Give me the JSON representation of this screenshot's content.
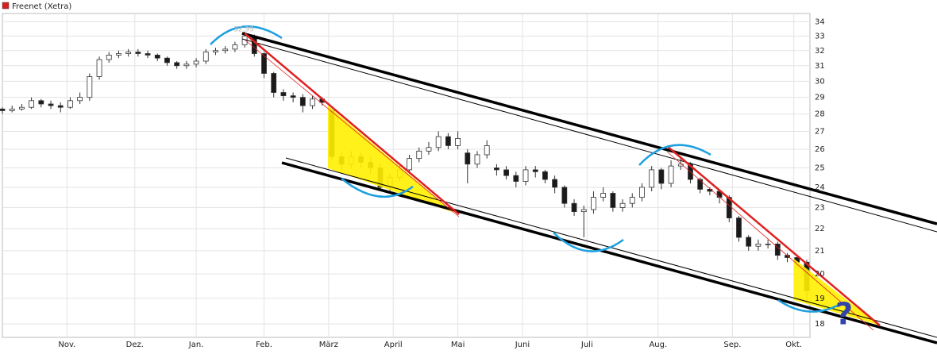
{
  "chart_data": {
    "type": "candlestick",
    "title": "Freenet (Xetra)",
    "legend_color": "#d62020",
    "log_scale": true,
    "grid": true,
    "up_color": "#ffffff",
    "down_color": "#1a1a1a",
    "wick_color": "#333333",
    "ylim": [
      17.5,
      34.6
    ],
    "yticks": [
      18,
      19,
      20,
      21,
      22,
      23,
      24,
      25,
      26,
      27,
      28,
      29,
      30,
      31,
      32,
      33,
      34
    ],
    "xlim": [
      0,
      250
    ],
    "xticks": [
      {
        "value": 20,
        "label": "Nov."
      },
      {
        "value": 41,
        "label": "Dez."
      },
      {
        "value": 60,
        "label": "Jan."
      },
      {
        "value": 81,
        "label": "Feb."
      },
      {
        "value": 101,
        "label": "März"
      },
      {
        "value": 121,
        "label": "April"
      },
      {
        "value": 141,
        "label": "Mai"
      },
      {
        "value": 161,
        "label": "Juni"
      },
      {
        "value": 181,
        "label": "Juli"
      },
      {
        "value": 203,
        "label": "Aug."
      },
      {
        "value": 226,
        "label": "Sep."
      },
      {
        "value": 245,
        "label": "Okt."
      }
    ],
    "x": [
      0,
      3,
      6,
      9,
      12,
      15,
      18,
      21,
      24,
      27,
      30,
      33,
      36,
      39,
      42,
      45,
      48,
      51,
      54,
      57,
      60,
      63,
      66,
      69,
      72,
      75,
      78,
      81,
      84,
      87,
      90,
      93,
      96,
      99,
      102,
      105,
      108,
      111,
      114,
      117,
      120,
      123,
      126,
      129,
      132,
      135,
      138,
      141,
      144,
      147,
      150,
      153,
      156,
      159,
      162,
      165,
      168,
      171,
      174,
      177,
      180,
      183,
      186,
      189,
      192,
      195,
      198,
      201,
      204,
      207,
      210,
      213,
      216,
      219,
      222,
      225,
      228,
      231,
      234,
      237,
      240,
      243,
      246,
      249
    ],
    "open": [
      28.3,
      28.2,
      28.3,
      28.4,
      28.8,
      28.6,
      28.5,
      28.4,
      28.8,
      29.0,
      30.3,
      31.4,
      31.7,
      31.8,
      31.9,
      31.8,
      31.7,
      31.5,
      31.2,
      31.0,
      31.1,
      31.3,
      31.9,
      32.0,
      32.1,
      32.4,
      33.0,
      31.8,
      30.5,
      29.3,
      29.1,
      29.0,
      28.5,
      28.9,
      28.2,
      25.6,
      25.2,
      25.6,
      25.3,
      25.0,
      24.0,
      24.5,
      24.9,
      25.5,
      25.9,
      26.1,
      26.7,
      26.2,
      25.8,
      25.2,
      25.7,
      25.0,
      24.9,
      24.6,
      24.3,
      24.9,
      24.8,
      24.4,
      24.0,
      23.2,
      22.8,
      22.9,
      23.5,
      23.7,
      23.0,
      23.2,
      23.5,
      24.0,
      24.9,
      24.2,
      25.1,
      25.2,
      24.4,
      23.9,
      23.8,
      23.5,
      22.5,
      21.6,
      21.2,
      21.3,
      21.3,
      20.8,
      20.7,
      20.5
    ],
    "high": [
      28.4,
      28.5,
      28.6,
      29.0,
      28.9,
      28.8,
      28.7,
      29.0,
      29.3,
      30.5,
      31.6,
      31.9,
      32.0,
      32.1,
      32.1,
      32.0,
      31.8,
      31.6,
      31.3,
      31.3,
      31.5,
      32.1,
      32.2,
      32.3,
      32.6,
      33.3,
      33.1,
      31.9,
      30.6,
      29.5,
      29.3,
      29.2,
      29.1,
      29.0,
      28.3,
      25.8,
      25.9,
      25.8,
      25.6,
      25.2,
      24.7,
      25.1,
      25.7,
      26.1,
      26.4,
      27.0,
      26.9,
      27.0,
      26.0,
      25.9,
      26.5,
      25.2,
      25.1,
      24.8,
      25.1,
      25.1,
      24.9,
      24.6,
      24.1,
      23.4,
      23.1,
      23.8,
      24.0,
      23.8,
      23.4,
      23.7,
      24.2,
      25.1,
      25.0,
      25.4,
      25.5,
      25.3,
      24.5,
      24.0,
      23.9,
      23.6,
      22.6,
      21.7,
      21.5,
      21.5,
      21.4,
      20.9,
      20.8,
      20.6
    ],
    "low": [
      28.0,
      28.1,
      28.2,
      28.3,
      28.4,
      28.3,
      28.1,
      28.3,
      28.6,
      28.8,
      30.1,
      31.2,
      31.5,
      31.6,
      31.6,
      31.5,
      31.3,
      31.0,
      30.8,
      30.8,
      30.9,
      31.1,
      31.7,
      31.8,
      31.9,
      32.2,
      31.6,
      30.2,
      29.0,
      28.8,
      28.7,
      28.1,
      28.3,
      28.5,
      25.4,
      24.9,
      25.0,
      25.0,
      24.7,
      23.8,
      23.8,
      24.3,
      24.7,
      25.3,
      25.7,
      25.9,
      26.0,
      26.0,
      24.2,
      25.0,
      25.5,
      24.6,
      24.4,
      24.0,
      24.1,
      24.5,
      24.2,
      23.7,
      23.0,
      22.6,
      21.6,
      22.7,
      23.3,
      22.8,
      22.8,
      23.0,
      23.3,
      23.8,
      23.9,
      24.0,
      24.9,
      24.2,
      23.7,
      23.6,
      23.2,
      22.3,
      21.4,
      21.0,
      21.0,
      21.1,
      20.6,
      20.5,
      20.3,
      18.8
    ],
    "close": [
      28.2,
      28.3,
      28.4,
      28.8,
      28.6,
      28.5,
      28.4,
      28.8,
      29.0,
      30.3,
      31.4,
      31.7,
      31.8,
      31.9,
      31.8,
      31.7,
      31.5,
      31.2,
      31.0,
      31.1,
      31.3,
      31.9,
      32.0,
      32.1,
      32.4,
      33.0,
      31.8,
      30.5,
      29.3,
      29.1,
      29.0,
      28.5,
      28.9,
      28.7,
      25.6,
      25.2,
      25.6,
      25.3,
      25.0,
      24.0,
      24.5,
      24.9,
      25.5,
      25.9,
      26.1,
      26.7,
      26.2,
      26.6,
      25.2,
      25.7,
      26.2,
      24.9,
      24.6,
      24.3,
      24.9,
      24.8,
      24.4,
      24.0,
      23.2,
      22.8,
      22.9,
      23.5,
      23.7,
      23.0,
      23.2,
      23.5,
      24.0,
      24.9,
      24.2,
      25.1,
      25.2,
      24.4,
      23.9,
      23.8,
      23.5,
      22.5,
      21.6,
      21.2,
      21.3,
      21.3,
      20.8,
      20.7,
      20.5,
      19.3
    ],
    "annotations": [
      {
        "text": "32.99"
      },
      {
        "text": "?"
      }
    ]
  }
}
